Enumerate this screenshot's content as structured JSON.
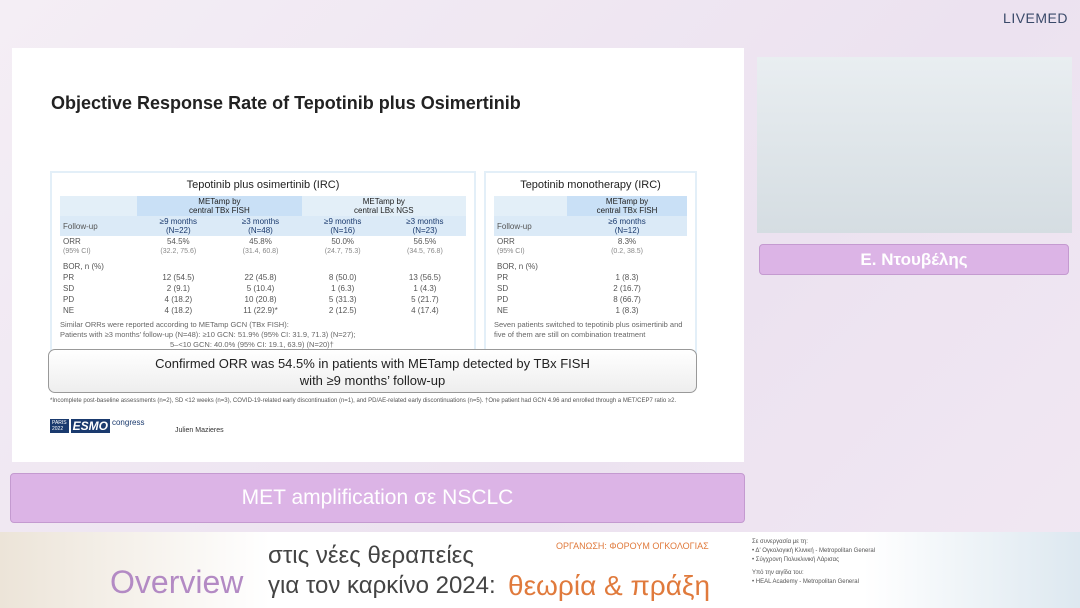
{
  "header": {
    "logo": "LIVEMED"
  },
  "slide": {
    "title": "Objective Response Rate of Tepotinib plus Osimertinib",
    "left_table": {
      "heading": "Tepotinib plus osimertinib (IRC)",
      "group_headers": [
        [
          "METamp by",
          "central TBx FISH"
        ],
        [
          "METamp by",
          "central LBx NGS"
        ]
      ],
      "header": [
        "Follow-up",
        [
          "≥9 months",
          "(N=22)"
        ],
        [
          "≥3 months",
          "(N=48)"
        ],
        [
          "≥9 months",
          "(N=16)"
        ],
        [
          "≥3 months",
          "(N=23)"
        ]
      ],
      "rows": [
        [
          "ORR",
          "54.5%",
          "45.8%",
          "50.0%",
          "56.5%"
        ],
        [
          "(95% CI)",
          "(32.2, 75.6)",
          "(31.4, 60.8)",
          "(24.7, 75.3)",
          "(34.5, 76.8)"
        ],
        [
          "BOR, n (%)"
        ],
        [
          "PR",
          "12 (54.5)",
          "22 (45.8)",
          "8 (50.0)",
          "13 (56.5)"
        ],
        [
          "SD",
          "2 (9.1)",
          "5 (10.4)",
          "1 (6.3)",
          "1 (4.3)"
        ],
        [
          "PD",
          "4 (18.2)",
          "10 (20.8)",
          "5 (31.3)",
          "5 (21.7)"
        ],
        [
          "NE",
          "4 (18.2)",
          "11 (22.9)*",
          "2 (12.5)",
          "4 (17.4)"
        ]
      ],
      "notes": [
        "Similar ORRs were reported according to METamp GCN (TBx FISH):",
        "Patients with ≥3 months’ follow-up (N=48): ≥10 GCN: 51.9% (95% CI: 31.9, 71.3) (N=27);",
        "5–<10 GCN: 40.0% (95% CI: 19.1, 63.9) (N=20)†"
      ]
    },
    "right_table": {
      "heading": "Tepotinib monotherapy (IRC)",
      "group_headers": [
        [
          "METamp by",
          "central TBx FISH"
        ]
      ],
      "header": [
        "Follow-up",
        [
          "≥6 months",
          "(N=12)"
        ]
      ],
      "rows": [
        [
          "ORR",
          "8.3%"
        ],
        [
          "(95% CI)",
          "(0.2, 38.5)"
        ],
        [
          "BOR, n (%)"
        ],
        [
          "PR",
          "1 (8.3)"
        ],
        [
          "SD",
          "2 (16.7)"
        ],
        [
          "PD",
          "8 (66.7)"
        ],
        [
          "NE",
          "1 (8.3)"
        ]
      ],
      "notes": [
        "Seven patients switched to tepotinib plus osimertinib and five of them are still on combination treatment"
      ]
    },
    "conclusion": [
      "Confirmed ORR was 54.5% in patients with METamp detected by TBx FISH",
      "with ≥9 months’ follow-up"
    ],
    "footnote": "*Incomplete post-baseline assessments (n=2), SD <12 weeks (n=3), COVID-19-related early discontinuation (n=1), and PD/AE-related early discontinuations (n=5). †One patient had GCN 4.96 and enrolled through a MET/CEP7 ratio ≥2.",
    "congress": {
      "city": "PARIS",
      "year": "2022",
      "name": "ESMO",
      "suffix": "congress"
    },
    "author": "Julien Mazieres"
  },
  "speaker": "Ε. Ντουβέλης",
  "topic": "MET amplification σε NSCLC",
  "footer": {
    "overview": "Overview",
    "line1": "στις νέες θεραπείες",
    "line2": "για τον καρκίνο 2024:",
    "highlight": "θεωρία & πράξη",
    "organizer": "ΟΡΓΑΝΩΣΗ: ΦΟΡΟΥΜ ΟΓΚΟΛΟΓΙΑΣ",
    "partners": [
      "Σε συνεργασία με τη:",
      "• Δ' Ογκολογική Κλινική - Metropolitan General",
      "• Σύγχρονη Πολυκλινική Λάρισας",
      "Υπό την αιγίδα του:",
      "• HEAL Academy - Metropolitan General"
    ]
  }
}
